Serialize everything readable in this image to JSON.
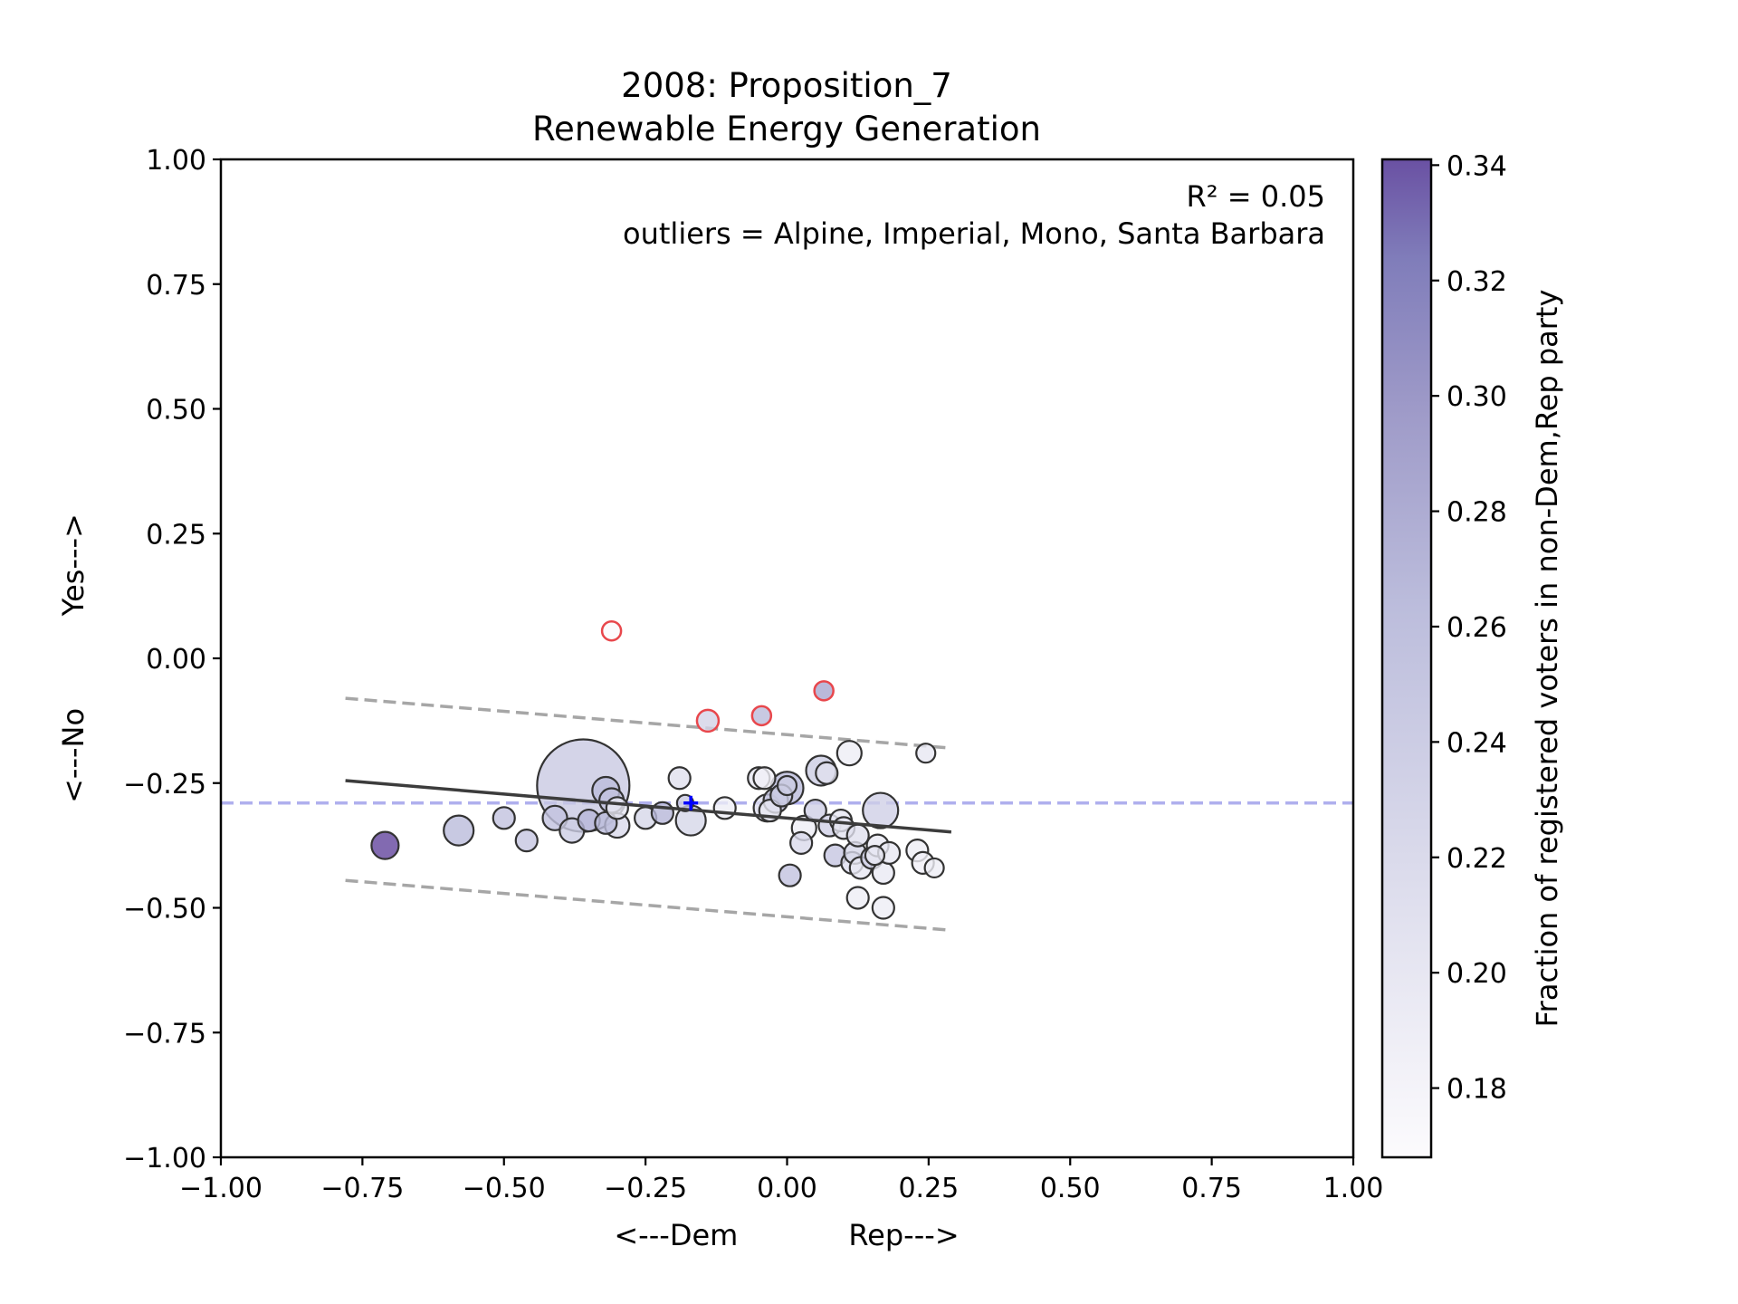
{
  "chart_data": {
    "type": "scatter",
    "title": [
      "2008: Proposition_7",
      "Renewable Energy Generation"
    ],
    "xlabel": "<---Dem            Rep--->",
    "ylabel": "<---No          Yes--->",
    "xlim": [
      -1.0,
      1.0
    ],
    "ylim": [
      -1.0,
      1.0
    ],
    "xticks": [
      "−1.00",
      "−0.75",
      "−0.50",
      "−0.25",
      "0.00",
      "0.25",
      "0.50",
      "0.75",
      "1.00"
    ],
    "yticks": [
      "1.00",
      "0.75",
      "0.50",
      "0.25",
      "0.00",
      "−0.25",
      "−0.50",
      "−0.75",
      "−1.00"
    ],
    "annotation_r2": "R² = 0.05",
    "annotation_outliers": "outliers = Alpine, Imperial, Mono, Santa Barbara",
    "grid": false,
    "colorbar": {
      "label": "Fraction of registered voters in non-Dem,Rep party",
      "range": [
        0.168,
        0.341
      ],
      "ticks": [
        "0.18",
        "0.20",
        "0.22",
        "0.24",
        "0.26",
        "0.28",
        "0.30",
        "0.32",
        "0.34"
      ],
      "tick_values": [
        0.18,
        0.2,
        0.22,
        0.24,
        0.26,
        0.28,
        0.3,
        0.32,
        0.34
      ],
      "colormap": "Purples",
      "color_low": "#fcfbfd",
      "color_high": "#54278f"
    },
    "fit_line": {
      "x": [
        -0.78,
        0.29
      ],
      "y": [
        -0.245,
        -0.348
      ],
      "color": "#3c3c3c"
    },
    "band_upper": {
      "x": [
        -0.78,
        0.29
      ],
      "y": [
        -0.08,
        -0.18
      ],
      "color": "#a6a6a6"
    },
    "band_lower": {
      "x": [
        -0.78,
        0.29
      ],
      "y": [
        -0.445,
        -0.545
      ],
      "color": "#a6a6a6"
    },
    "mean_line": {
      "y": -0.29,
      "color": "#b0b0ee"
    },
    "mean_marker": {
      "x": -0.17,
      "y": -0.29,
      "color": "#0000ff"
    },
    "points": [
      {
        "x": -0.36,
        "y": -0.255,
        "s": 34,
        "c": 0.245
      },
      {
        "x": -0.71,
        "y": -0.375,
        "s": 10,
        "c": 0.335
      },
      {
        "x": -0.58,
        "y": -0.345,
        "s": 11,
        "c": 0.265
      },
      {
        "x": -0.5,
        "y": -0.32,
        "s": 8,
        "c": 0.255
      },
      {
        "x": -0.46,
        "y": -0.365,
        "s": 8,
        "c": 0.25
      },
      {
        "x": -0.41,
        "y": -0.32,
        "s": 9,
        "c": 0.255
      },
      {
        "x": -0.38,
        "y": -0.345,
        "s": 9,
        "c": 0.24
      },
      {
        "x": -0.35,
        "y": -0.325,
        "s": 8,
        "c": 0.27
      },
      {
        "x": -0.32,
        "y": -0.265,
        "s": 10,
        "c": 0.265
      },
      {
        "x": -0.31,
        "y": -0.285,
        "s": 9,
        "c": 0.255
      },
      {
        "x": -0.32,
        "y": -0.33,
        "s": 8,
        "c": 0.265
      },
      {
        "x": -0.3,
        "y": -0.335,
        "s": 9,
        "c": 0.22
      },
      {
        "x": -0.3,
        "y": -0.3,
        "s": 8,
        "c": 0.2
      },
      {
        "x": -0.25,
        "y": -0.32,
        "s": 8,
        "c": 0.225
      },
      {
        "x": -0.22,
        "y": -0.31,
        "s": 8,
        "c": 0.27
      },
      {
        "x": -0.19,
        "y": -0.24,
        "s": 8,
        "c": 0.21
      },
      {
        "x": -0.17,
        "y": -0.325,
        "s": 11,
        "c": 0.225
      },
      {
        "x": -0.18,
        "y": -0.29,
        "s": 6,
        "c": 0.245
      },
      {
        "x": -0.11,
        "y": -0.3,
        "s": 8,
        "c": 0.19
      },
      {
        "x": -0.05,
        "y": -0.24,
        "s": 8,
        "c": 0.2
      },
      {
        "x": -0.04,
        "y": -0.24,
        "s": 8,
        "c": 0.185
      },
      {
        "x": -0.035,
        "y": -0.3,
        "s": 10,
        "c": 0.215
      },
      {
        "x": -0.03,
        "y": -0.305,
        "s": 8,
        "c": 0.2
      },
      {
        "x": -0.02,
        "y": -0.285,
        "s": 9,
        "c": 0.255
      },
      {
        "x": -0.01,
        "y": -0.275,
        "s": 8,
        "c": 0.24
      },
      {
        "x": 0.0,
        "y": -0.26,
        "s": 12,
        "c": 0.265
      },
      {
        "x": 0.0,
        "y": -0.255,
        "s": 7,
        "c": 0.24
      },
      {
        "x": 0.005,
        "y": -0.435,
        "s": 8,
        "c": 0.255
      },
      {
        "x": 0.025,
        "y": -0.37,
        "s": 8,
        "c": 0.22
      },
      {
        "x": 0.03,
        "y": -0.34,
        "s": 9,
        "c": 0.19
      },
      {
        "x": 0.05,
        "y": -0.305,
        "s": 8,
        "c": 0.235
      },
      {
        "x": 0.06,
        "y": -0.225,
        "s": 11,
        "c": 0.24
      },
      {
        "x": 0.07,
        "y": -0.23,
        "s": 8,
        "c": 0.21
      },
      {
        "x": 0.075,
        "y": -0.335,
        "s": 8,
        "c": 0.235
      },
      {
        "x": 0.085,
        "y": -0.395,
        "s": 8,
        "c": 0.25
      },
      {
        "x": 0.095,
        "y": -0.325,
        "s": 8,
        "c": 0.2
      },
      {
        "x": 0.1,
        "y": -0.34,
        "s": 8,
        "c": 0.205
      },
      {
        "x": 0.11,
        "y": -0.19,
        "s": 9,
        "c": 0.19
      },
      {
        "x": 0.115,
        "y": -0.41,
        "s": 8,
        "c": 0.215
      },
      {
        "x": 0.12,
        "y": -0.39,
        "s": 8,
        "c": 0.225
      },
      {
        "x": 0.125,
        "y": -0.355,
        "s": 8,
        "c": 0.21
      },
      {
        "x": 0.13,
        "y": -0.42,
        "s": 8,
        "c": 0.2
      },
      {
        "x": 0.125,
        "y": -0.48,
        "s": 8,
        "c": 0.19
      },
      {
        "x": 0.15,
        "y": -0.4,
        "s": 8,
        "c": 0.235
      },
      {
        "x": 0.155,
        "y": -0.395,
        "s": 7,
        "c": 0.2
      },
      {
        "x": 0.16,
        "y": -0.375,
        "s": 8,
        "c": 0.195
      },
      {
        "x": 0.165,
        "y": -0.305,
        "s": 13,
        "c": 0.235
      },
      {
        "x": 0.17,
        "y": -0.43,
        "s": 8,
        "c": 0.195
      },
      {
        "x": 0.17,
        "y": -0.5,
        "s": 8,
        "c": 0.19
      },
      {
        "x": 0.18,
        "y": -0.39,
        "s": 8,
        "c": 0.2
      },
      {
        "x": 0.23,
        "y": -0.385,
        "s": 8,
        "c": 0.19
      },
      {
        "x": 0.24,
        "y": -0.41,
        "s": 8,
        "c": 0.185
      },
      {
        "x": 0.245,
        "y": -0.19,
        "s": 7,
        "c": 0.2
      },
      {
        "x": 0.26,
        "y": -0.42,
        "s": 7,
        "c": 0.19
      }
    ],
    "outliers": [
      {
        "x": -0.31,
        "y": 0.055,
        "s": 7,
        "c": 0.17
      },
      {
        "x": -0.14,
        "y": -0.125,
        "s": 8,
        "c": 0.23
      },
      {
        "x": -0.045,
        "y": -0.115,
        "s": 7,
        "c": 0.265
      },
      {
        "x": 0.065,
        "y": -0.065,
        "s": 7,
        "c": 0.285
      }
    ],
    "outlier_edge_color": "#e8474c"
  }
}
